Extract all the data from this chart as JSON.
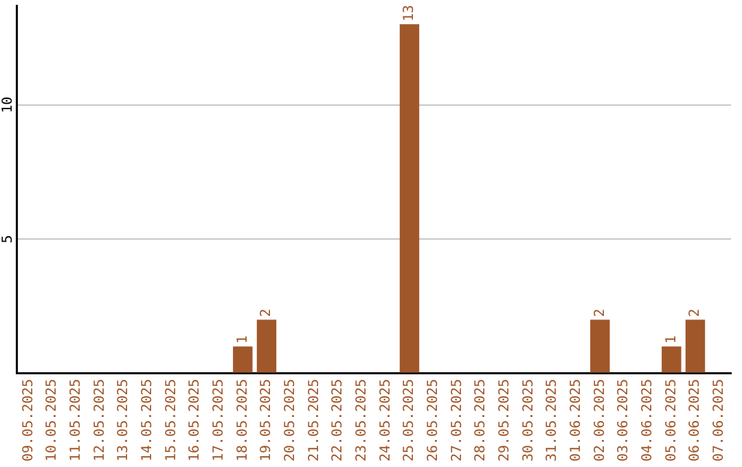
{
  "chart_data": {
    "type": "bar",
    "categories": [
      "09.05.2025",
      "10.05.2025",
      "11.05.2025",
      "12.05.2025",
      "13.05.2025",
      "14.05.2025",
      "15.05.2025",
      "16.05.2025",
      "17.05.2025",
      "18.05.2025",
      "19.05.2025",
      "20.05.2025",
      "21.05.2025",
      "22.05.2025",
      "23.05.2025",
      "24.05.2025",
      "25.05.2025",
      "26.05.2025",
      "27.05.2025",
      "28.05.2025",
      "29.05.2025",
      "30.05.2025",
      "31.05.2025",
      "01.06.2025",
      "02.06.2025",
      "03.06.2025",
      "04.06.2025",
      "05.06.2025",
      "06.06.2025",
      "07.06.2025"
    ],
    "values": [
      0,
      0,
      0,
      0,
      0,
      0,
      0,
      0,
      0,
      1,
      2,
      0,
      0,
      0,
      0,
      0,
      13,
      0,
      0,
      0,
      0,
      0,
      0,
      0,
      2,
      0,
      0,
      1,
      2,
      0
    ],
    "value_labels": [
      null,
      null,
      null,
      null,
      null,
      null,
      null,
      null,
      null,
      "1",
      "2",
      null,
      null,
      null,
      null,
      null,
      "13",
      null,
      null,
      null,
      null,
      null,
      null,
      null,
      "2",
      null,
      null,
      "1",
      "2",
      null
    ],
    "color": "#a0572a",
    "ylim": [
      0,
      13.7
    ],
    "yticks": [
      {
        "value": 0,
        "label": null
      },
      5,
      10
    ],
    "grid": "y"
  }
}
